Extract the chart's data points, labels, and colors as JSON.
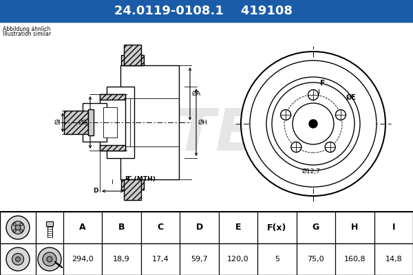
{
  "part_number": "24.0119-0108.1",
  "ref_number": "419108",
  "header_bg": "#1a5ca8",
  "header_text_color": "#ffffff",
  "note_line1": "Abbildung ähnlich",
  "note_line2": "Illustration similar",
  "table_headers": [
    "A",
    "B",
    "C",
    "D",
    "E",
    "F(x)",
    "G",
    "H",
    "I"
  ],
  "table_values": [
    "294,0",
    "18,9",
    "17,4",
    "59,7",
    "120,0",
    "5",
    "75,0",
    "160,8",
    "14,8"
  ],
  "dim_label_12_7": "Ø12,7",
  "background_color": "#e8e8e8",
  "drawing_bg": "#ffffff",
  "table_bg": "#ffffff"
}
